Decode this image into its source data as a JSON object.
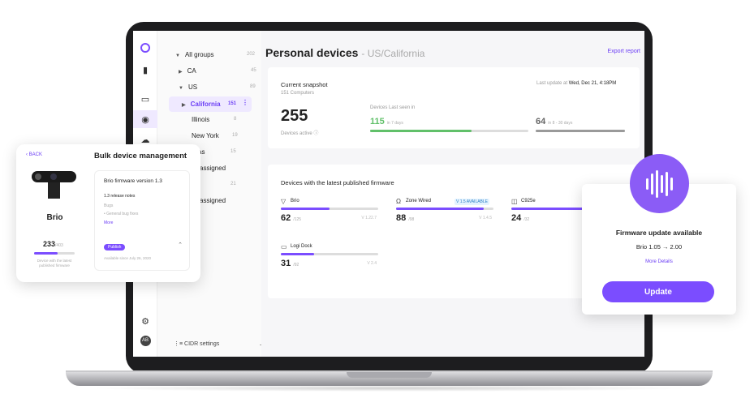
{
  "sidebar_tree": {
    "all_groups": {
      "label": "All groups",
      "count": "202"
    },
    "ca": {
      "label": "CA",
      "count": "45"
    },
    "us": {
      "label": "US",
      "count": "89"
    },
    "california": {
      "label": "California",
      "count": "151"
    },
    "illinois": {
      "label": "Illinois",
      "count": "8"
    },
    "new_york": {
      "label": "New York",
      "count": "19"
    },
    "texas_partial": {
      "label": "as",
      "count": "15"
    },
    "unassigned_1": {
      "label": "assigned"
    },
    "count_21": {
      "count": "21"
    },
    "unassigned_2": {
      "label": "assigned"
    },
    "cidr": "CIDR settings"
  },
  "header": {
    "title": "Personal devices",
    "subtitle": "- US/California",
    "export": "Export report"
  },
  "snapshot": {
    "heading": "Current snapshot",
    "computers": "151 Computers",
    "last_update_label": "Last update at",
    "last_update_value": "Wed, Dec 21, 4:18PM",
    "active_value": "255",
    "active_label": "Devices active",
    "last_seen_label": "Devices Last seen in",
    "recent_value": "115",
    "recent_label": "in 7 days",
    "older_value": "64",
    "older_label": "in 8 - 30 days",
    "recent_fill": 0.64,
    "older_fill": 1.0,
    "recent_color": "#61c06a",
    "older_color": "#9a9a9a"
  },
  "firmware": {
    "heading": "Devices with the latest published firmware",
    "devices": [
      {
        "name": "Brio",
        "count": "62",
        "total": "/125",
        "version": "V 1.22.7",
        "fill": 0.5
      },
      {
        "name": "Zone Wired",
        "count": "88",
        "total": "/98",
        "version": "V 1.4.5",
        "badge": "V 1.5 AVAILABLE",
        "fill": 0.9
      },
      {
        "name": "C925e",
        "count": "24",
        "total": "/32",
        "version": "",
        "fill": 0.75
      },
      {
        "name": "Logi Dock",
        "count": "31",
        "total": "/92",
        "version": "V 2.4",
        "fill": 0.34
      }
    ]
  },
  "bulk_panel": {
    "back": "BACK",
    "title": "Bulk device management",
    "device_name": "Brio",
    "count": "233",
    "count_total": "/403",
    "count_fill": 0.58,
    "note": "Device with the latest published firmware",
    "fw_title": "Brio firmware version 1.3",
    "release_notes": "1.3 release notes",
    "bugs": "Bugs",
    "bug_fix": "• General bug fixes",
    "more": "More",
    "publish": "Publish",
    "available": "Available since July 26, 2020"
  },
  "update_panel": {
    "title": "Firmware update available",
    "version": "Brio 1.05 → 2.00",
    "more": "More Details",
    "button": "Update"
  },
  "rail": {
    "avatar": "AB"
  },
  "colors": {
    "accent": "#7b4dff",
    "green": "#61c06a"
  }
}
